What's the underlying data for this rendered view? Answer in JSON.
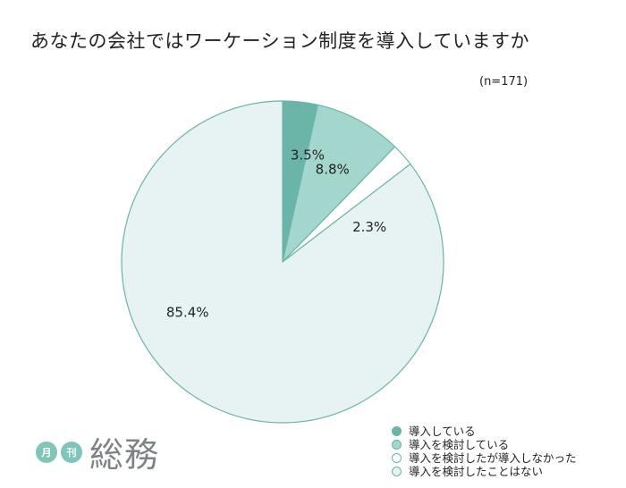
{
  "chart_data": {
    "type": "pie",
    "title": "あなたの会社ではワーケーション制度を導入していますか",
    "sample_size": "(n=171)",
    "slices": [
      {
        "label": "導入している",
        "value": 3.5,
        "value_label": "3.5%",
        "color": "#6ab4a8"
      },
      {
        "label": "導入を検討している",
        "value": 8.8,
        "value_label": "8.8%",
        "color": "#a3d6cc"
      },
      {
        "label": "導入を検討したが導入しなかった",
        "value": 2.3,
        "value_label": "2.3%",
        "color": "#ffffff"
      },
      {
        "label": "導入を検討したことはない",
        "value": 85.4,
        "value_label": "85.4%",
        "color": "#e7f3f2"
      }
    ],
    "start_angle_deg": 0,
    "direction": "clockwise",
    "legend_position": "bottom-right",
    "stroke_color": "#6ab4a8"
  },
  "logo": {
    "badge_1": "月",
    "badge_2": "刊",
    "name": "総務"
  }
}
